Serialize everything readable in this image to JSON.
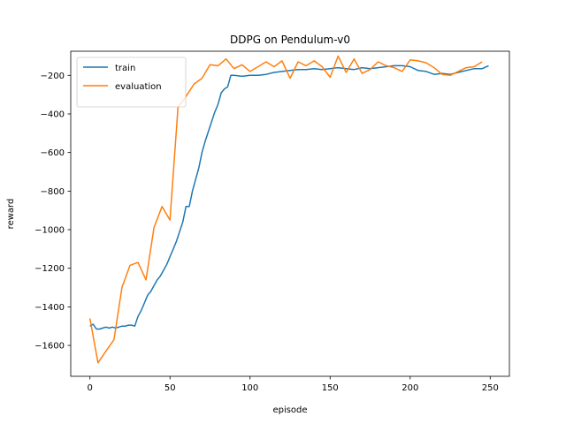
{
  "chart_data": {
    "type": "line",
    "title": "DDPG on Pendulum-v0",
    "xlabel": "episode",
    "ylabel": "reward",
    "xlim": [
      -12,
      262
    ],
    "ylim": [
      -1760,
      -75
    ],
    "x_ticks": [
      0,
      50,
      100,
      150,
      200,
      250
    ],
    "y_ticks": [
      -1600,
      -1400,
      -1200,
      -1000,
      -800,
      -600,
      -400,
      -200
    ],
    "grid": false,
    "legend_position": "top-left",
    "series": [
      {
        "name": "train",
        "color": "#1f77b4",
        "x": [
          0,
          2,
          4,
          6,
          8,
          10,
          12,
          14,
          16,
          18,
          20,
          22,
          24,
          26,
          28,
          30,
          32,
          34,
          36,
          38,
          40,
          42,
          44,
          46,
          48,
          50,
          52,
          54,
          56,
          58,
          60,
          62,
          64,
          66,
          68,
          70,
          72,
          74,
          76,
          78,
          80,
          82,
          84,
          86,
          88,
          90,
          95,
          100,
          105,
          110,
          115,
          120,
          125,
          130,
          135,
          140,
          145,
          150,
          155,
          160,
          165,
          170,
          175,
          180,
          185,
          190,
          195,
          200,
          205,
          210,
          215,
          220,
          225,
          230,
          235,
          240,
          245,
          249
        ],
        "y": [
          -1500,
          -1490,
          -1515,
          -1515,
          -1510,
          -1505,
          -1510,
          -1505,
          -1510,
          -1505,
          -1500,
          -1500,
          -1495,
          -1495,
          -1500,
          -1450,
          -1420,
          -1380,
          -1340,
          -1320,
          -1290,
          -1260,
          -1240,
          -1210,
          -1180,
          -1140,
          -1100,
          -1060,
          -1010,
          -960,
          -880,
          -880,
          -800,
          -740,
          -680,
          -600,
          -540,
          -490,
          -440,
          -390,
          -350,
          -290,
          -270,
          -260,
          -200,
          -200,
          -205,
          -200,
          -200,
          -195,
          -185,
          -180,
          -175,
          -170,
          -170,
          -165,
          -170,
          -165,
          -160,
          -165,
          -170,
          -160,
          -165,
          -160,
          -155,
          -150,
          -150,
          -155,
          -175,
          -180,
          -195,
          -190,
          -195,
          -185,
          -175,
          -165,
          -165,
          -150
        ]
      },
      {
        "name": "evaluation",
        "color": "#ff7f0e",
        "x": [
          0,
          5,
          10,
          15,
          20,
          25,
          30,
          35,
          40,
          45,
          50,
          55,
          60,
          65,
          70,
          75,
          80,
          85,
          90,
          95,
          100,
          105,
          110,
          115,
          120,
          125,
          130,
          135,
          140,
          145,
          150,
          155,
          160,
          165,
          170,
          175,
          180,
          185,
          190,
          195,
          200,
          205,
          210,
          215,
          220,
          225,
          230,
          235,
          240,
          245
        ],
        "y": [
          -1460,
          -1690,
          -1630,
          -1570,
          -1300,
          -1185,
          -1170,
          -1260,
          -990,
          -880,
          -950,
          -365,
          -310,
          -245,
          -215,
          -145,
          -150,
          -115,
          -165,
          -145,
          -180,
          -155,
          -130,
          -155,
          -125,
          -215,
          -130,
          -150,
          -125,
          -155,
          -210,
          -100,
          -185,
          -115,
          -190,
          -170,
          -130,
          -150,
          -160,
          -180,
          -120,
          -125,
          -135,
          -160,
          -195,
          -200,
          -180,
          -160,
          -155,
          -130
        ]
      }
    ]
  }
}
